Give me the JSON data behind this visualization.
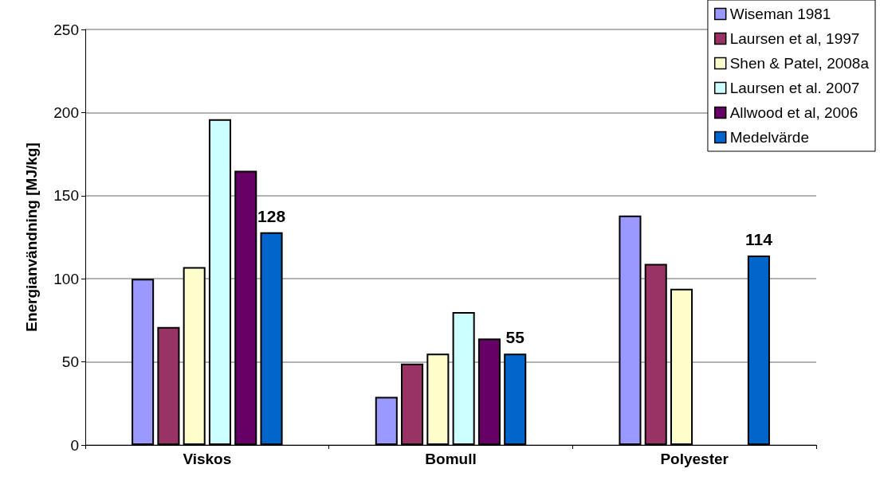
{
  "chart_data": {
    "type": "bar",
    "ylabel": "Energianvändning [MJ/kg]",
    "categories": [
      "Viskos",
      "Bomull",
      "Polyester"
    ],
    "series": [
      {
        "name": "Wiseman 1981",
        "color": "#9999ff",
        "values": [
          100,
          29,
          138
        ]
      },
      {
        "name": "Laursen et al, 1997",
        "color": "#993366",
        "values": [
          71,
          49,
          109
        ]
      },
      {
        "name": "Shen & Patel, 2008a",
        "color": "#ffffcc",
        "values": [
          107,
          55,
          94
        ]
      },
      {
        "name": "Laursen et al. 2007",
        "color": "#ccffff",
        "values": [
          196,
          80,
          null
        ]
      },
      {
        "name": "Allwood et al, 2006",
        "color": "#660066",
        "values": [
          165,
          64,
          null
        ]
      },
      {
        "name": "Medelvärde",
        "color": "#0066cc",
        "values": [
          128,
          55,
          114
        ],
        "value_labels": [
          "128",
          "55",
          "114"
        ]
      }
    ],
    "ylim": [
      0,
      250
    ],
    "yticks": [
      0,
      50,
      100,
      150,
      200,
      250
    ],
    "grid": "y",
    "legend": "top right"
  }
}
